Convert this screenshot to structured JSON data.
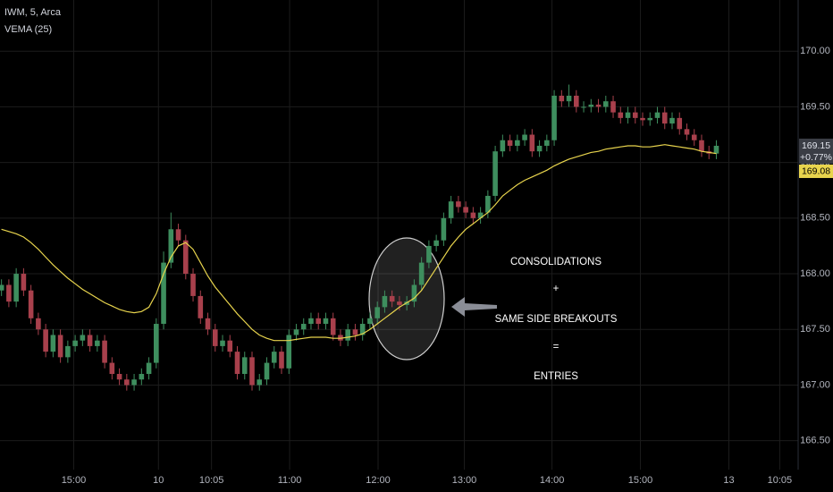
{
  "chart_data": {
    "type": "candlestick",
    "annotations": [
      "CONSOLIDATIONS",
      "+",
      "SAME SIDE BREAKOUTS",
      "=",
      "ENTRIES"
    ],
    "last_price_label": "169.15",
    "change_label": "+0.77%",
    "vema_label": "169.08",
    "xlim": [
      0.8,
      109.1
    ],
    "xticks": [
      {
        "value": 10.8,
        "label": "15:00"
      },
      {
        "value": 22.3,
        "label": "10"
      },
      {
        "value": 29.5,
        "label": "10:05"
      },
      {
        "value": 40.1,
        "label": "11:00"
      },
      {
        "value": 52.1,
        "label": "12:00"
      },
      {
        "value": 63.8,
        "label": "13:00"
      },
      {
        "value": 75.7,
        "label": "14:00"
      },
      {
        "value": 87.7,
        "label": "15:00"
      },
      {
        "value": 99.7,
        "label": "13"
      },
      {
        "value": 106.6,
        "label": "10:05"
      }
    ],
    "ylim": [
      166.24,
      170.46
    ],
    "yticks": [
      {
        "value": 166.5,
        "label": "166.50"
      },
      {
        "value": 167,
        "label": "167.00"
      },
      {
        "value": 167.5,
        "label": "167.50"
      },
      {
        "value": 168,
        "label": "168.00"
      },
      {
        "value": 168.5,
        "label": "168.50"
      },
      {
        "value": 169,
        "label": "169.00"
      },
      {
        "value": 169.5,
        "label": "169.50"
      },
      {
        "value": 170,
        "label": "170.00"
      }
    ],
    "grid": true,
    "x": [
      1,
      2,
      3,
      4,
      5,
      6,
      7,
      8,
      9,
      10,
      11,
      12,
      13,
      14,
      15,
      16,
      17,
      18,
      19,
      20,
      21,
      22,
      23,
      24,
      25,
      26,
      27,
      28,
      29,
      30,
      31,
      32,
      33,
      34,
      35,
      36,
      37,
      38,
      39,
      40,
      41,
      42,
      43,
      44,
      45,
      46,
      47,
      48,
      49,
      50,
      51,
      52,
      53,
      54,
      55,
      56,
      57,
      58,
      59,
      60,
      61,
      62,
      63,
      64,
      65,
      66,
      67,
      68,
      69,
      70,
      71,
      72,
      73,
      74,
      75,
      76,
      77,
      78,
      79,
      80,
      81,
      82,
      83,
      84,
      85,
      86,
      87,
      88,
      89,
      90,
      91,
      92,
      93,
      94,
      95,
      96,
      97,
      98
    ],
    "series": [
      {
        "name": "IWM, 5, Arca",
        "up_color": "#3e8e5e",
        "down_color": "#a8404c",
        "open": [
          167.85,
          167.9,
          167.75,
          168.0,
          167.85,
          167.6,
          167.5,
          167.3,
          167.45,
          167.25,
          167.35,
          167.4,
          167.45,
          167.35,
          167.4,
          167.2,
          167.1,
          167.05,
          167.0,
          167.05,
          167.1,
          167.2,
          167.55,
          168.1,
          168.4,
          168.3,
          168.0,
          167.8,
          167.6,
          167.5,
          167.35,
          167.4,
          167.3,
          167.1,
          167.25,
          167.0,
          167.05,
          167.2,
          167.3,
          167.15,
          167.45,
          167.5,
          167.55,
          167.6,
          167.55,
          167.6,
          167.45,
          167.4,
          167.5,
          167.45,
          167.55,
          167.6,
          167.7,
          167.8,
          167.75,
          167.72,
          167.75,
          167.9,
          168.1,
          168.25,
          168.3,
          168.5,
          168.65,
          168.6,
          168.55,
          168.5,
          168.55,
          168.7,
          169.1,
          169.2,
          169.15,
          169.2,
          169.25,
          169.1,
          169.15,
          169.2,
          169.6,
          169.55,
          169.6,
          169.5,
          169.5,
          169.52,
          169.5,
          169.55,
          169.45,
          169.4,
          169.45,
          169.4,
          169.38,
          169.4,
          169.45,
          169.35,
          169.4,
          169.3,
          169.25,
          169.2,
          169.1,
          169.08
        ],
        "high": [
          167.95,
          167.95,
          168.05,
          168.05,
          167.9,
          167.65,
          167.55,
          167.5,
          167.5,
          167.4,
          167.45,
          167.5,
          167.5,
          167.45,
          167.45,
          167.25,
          167.15,
          167.1,
          167.1,
          167.15,
          167.25,
          167.6,
          168.2,
          168.55,
          168.45,
          168.35,
          168.05,
          167.85,
          167.65,
          167.55,
          167.45,
          167.45,
          167.35,
          167.3,
          167.3,
          167.1,
          167.25,
          167.35,
          167.35,
          167.5,
          167.55,
          167.6,
          167.65,
          167.65,
          167.65,
          167.65,
          167.5,
          167.55,
          167.55,
          167.6,
          167.65,
          167.75,
          167.85,
          167.85,
          167.8,
          167.8,
          167.95,
          168.15,
          168.3,
          168.35,
          168.55,
          168.7,
          168.7,
          168.65,
          168.6,
          168.6,
          168.75,
          169.15,
          169.25,
          169.25,
          169.25,
          169.3,
          169.3,
          169.2,
          169.25,
          169.65,
          169.65,
          169.7,
          169.65,
          169.55,
          169.57,
          169.57,
          169.6,
          169.6,
          169.5,
          169.5,
          169.5,
          169.45,
          169.45,
          169.5,
          169.5,
          169.45,
          169.45,
          169.35,
          169.3,
          169.25,
          169.15,
          169.2
        ],
        "low": [
          167.8,
          167.7,
          167.7,
          167.8,
          167.55,
          167.45,
          167.25,
          167.25,
          167.2,
          167.2,
          167.3,
          167.35,
          167.3,
          167.3,
          167.15,
          167.05,
          167.0,
          166.95,
          166.95,
          167.0,
          167.05,
          167.15,
          167.5,
          168.05,
          168.25,
          167.95,
          167.75,
          167.55,
          167.45,
          167.3,
          167.3,
          167.25,
          167.05,
          167.05,
          166.95,
          166.95,
          167.0,
          167.15,
          167.1,
          167.1,
          167.4,
          167.45,
          167.5,
          167.5,
          167.5,
          167.4,
          167.35,
          167.35,
          167.4,
          167.4,
          167.5,
          167.55,
          167.65,
          167.7,
          167.67,
          167.67,
          167.7,
          167.85,
          168.05,
          168.2,
          168.25,
          168.45,
          168.55,
          168.5,
          168.45,
          168.45,
          168.5,
          168.65,
          169.05,
          169.1,
          169.1,
          169.15,
          169.05,
          169.05,
          169.1,
          169.15,
          169.5,
          169.5,
          169.45,
          169.45,
          169.45,
          169.45,
          169.45,
          169.4,
          169.35,
          169.35,
          169.35,
          169.33,
          169.33,
          169.35,
          169.3,
          169.3,
          169.25,
          169.2,
          169.15,
          169.05,
          169.03,
          169.03
        ],
        "close": [
          167.9,
          167.75,
          168.0,
          167.85,
          167.6,
          167.5,
          167.3,
          167.45,
          167.25,
          167.35,
          167.4,
          167.45,
          167.35,
          167.4,
          167.2,
          167.1,
          167.05,
          167.0,
          167.05,
          167.1,
          167.2,
          167.55,
          168.1,
          168.4,
          168.3,
          168.0,
          167.8,
          167.6,
          167.5,
          167.35,
          167.4,
          167.3,
          167.1,
          167.25,
          167.0,
          167.05,
          167.2,
          167.3,
          167.15,
          167.45,
          167.5,
          167.55,
          167.6,
          167.55,
          167.6,
          167.45,
          167.4,
          167.5,
          167.45,
          167.55,
          167.6,
          167.7,
          167.8,
          167.75,
          167.72,
          167.75,
          167.9,
          168.1,
          168.25,
          168.3,
          168.5,
          168.65,
          168.6,
          168.55,
          168.5,
          168.55,
          168.7,
          169.1,
          169.2,
          169.15,
          169.2,
          169.25,
          169.1,
          169.15,
          169.2,
          169.6,
          169.55,
          169.6,
          169.5,
          169.5,
          169.52,
          169.5,
          169.55,
          169.45,
          169.4,
          169.45,
          169.4,
          169.38,
          169.4,
          169.45,
          169.35,
          169.4,
          169.3,
          169.25,
          169.2,
          169.1,
          169.08,
          169.15
        ]
      },
      {
        "name": "VEMA (25)",
        "color": "#e8d44d",
        "values": [
          168.4,
          168.38,
          168.36,
          168.33,
          168.28,
          168.22,
          168.15,
          168.08,
          168.02,
          167.96,
          167.91,
          167.86,
          167.82,
          167.78,
          167.74,
          167.71,
          167.68,
          167.66,
          167.65,
          167.66,
          167.7,
          167.82,
          168.0,
          168.15,
          168.25,
          168.28,
          168.22,
          168.1,
          167.98,
          167.88,
          167.8,
          167.72,
          167.64,
          167.57,
          167.5,
          167.45,
          167.42,
          167.4,
          167.4,
          167.4,
          167.41,
          167.42,
          167.43,
          167.43,
          167.43,
          167.42,
          167.42,
          167.43,
          167.44,
          167.46,
          167.5,
          167.55,
          167.6,
          167.65,
          167.7,
          167.74,
          167.78,
          167.85,
          167.95,
          168.05,
          168.15,
          168.25,
          168.33,
          168.4,
          168.45,
          168.5,
          168.55,
          168.62,
          168.7,
          168.75,
          168.8,
          168.84,
          168.87,
          168.9,
          168.93,
          168.97,
          169.0,
          169.03,
          169.05,
          169.07,
          169.09,
          169.1,
          169.12,
          169.13,
          169.14,
          169.15,
          169.15,
          169.14,
          169.14,
          169.15,
          169.16,
          169.15,
          169.14,
          169.13,
          169.12,
          169.1,
          169.09,
          169.08
        ]
      }
    ]
  }
}
